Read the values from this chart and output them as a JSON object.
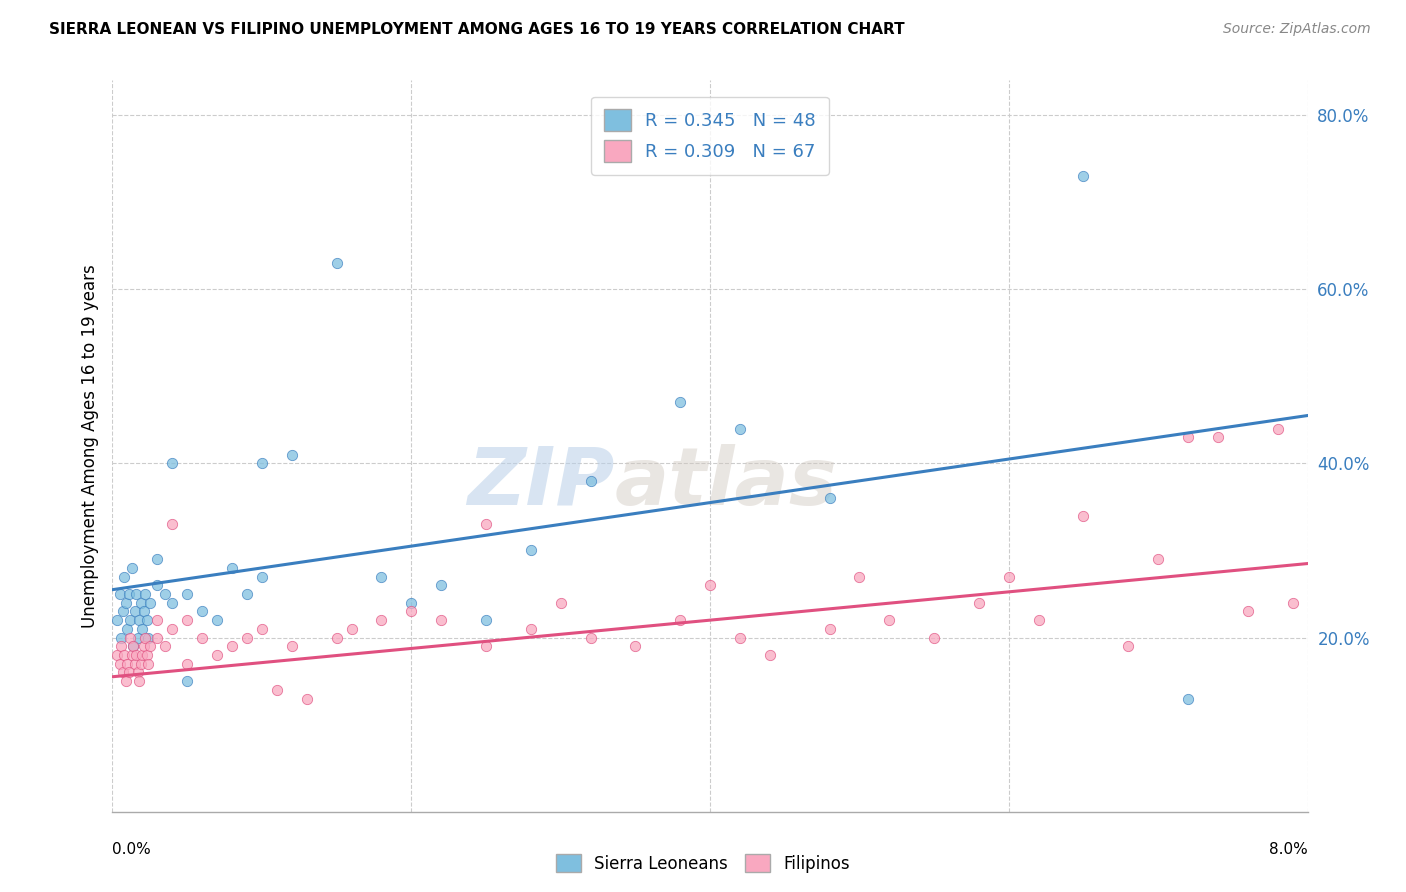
{
  "title": "SIERRA LEONEAN VS FILIPINO UNEMPLOYMENT AMONG AGES 16 TO 19 YEARS CORRELATION CHART",
  "source": "Source: ZipAtlas.com",
  "ylabel": "Unemployment Among Ages 16 to 19 years",
  "xlim": [
    0.0,
    0.08
  ],
  "ylim": [
    0.0,
    0.84
  ],
  "yticks": [
    0.2,
    0.4,
    0.6,
    0.8
  ],
  "ytick_labels": [
    "20.0%",
    "40.0%",
    "60.0%",
    "80.0%"
  ],
  "color_blue": "#7fbfdf",
  "color_pink": "#f9a8c0",
  "line_blue": "#3a7ebf",
  "line_pink": "#e05080",
  "watermark_zip": "ZIP",
  "watermark_atlas": "atlas",
  "sl_line_x0": 0.0,
  "sl_line_y0": 0.255,
  "sl_line_x1": 0.08,
  "sl_line_y1": 0.455,
  "fi_line_x0": 0.0,
  "fi_line_y0": 0.155,
  "fi_line_x1": 0.08,
  "fi_line_y1": 0.285,
  "sl_x": [
    0.0003,
    0.0005,
    0.0006,
    0.0007,
    0.0008,
    0.0009,
    0.001,
    0.0011,
    0.0012,
    0.0013,
    0.0014,
    0.0015,
    0.0016,
    0.0017,
    0.0018,
    0.0019,
    0.002,
    0.0021,
    0.0022,
    0.0023,
    0.0024,
    0.0025,
    0.003,
    0.003,
    0.0035,
    0.004,
    0.004,
    0.005,
    0.005,
    0.006,
    0.007,
    0.008,
    0.009,
    0.01,
    0.01,
    0.012,
    0.015,
    0.018,
    0.02,
    0.022,
    0.025,
    0.028,
    0.032,
    0.038,
    0.042,
    0.048,
    0.065,
    0.072
  ],
  "sl_y": [
    0.22,
    0.25,
    0.2,
    0.23,
    0.27,
    0.24,
    0.21,
    0.25,
    0.22,
    0.28,
    0.19,
    0.23,
    0.25,
    0.2,
    0.22,
    0.24,
    0.21,
    0.23,
    0.25,
    0.22,
    0.2,
    0.24,
    0.26,
    0.29,
    0.25,
    0.24,
    0.4,
    0.15,
    0.25,
    0.23,
    0.22,
    0.28,
    0.25,
    0.27,
    0.4,
    0.41,
    0.63,
    0.27,
    0.24,
    0.26,
    0.22,
    0.3,
    0.38,
    0.47,
    0.44,
    0.36,
    0.73,
    0.13
  ],
  "fi_x": [
    0.0003,
    0.0005,
    0.0006,
    0.0007,
    0.0008,
    0.0009,
    0.001,
    0.0011,
    0.0012,
    0.0013,
    0.0014,
    0.0015,
    0.0016,
    0.0017,
    0.0018,
    0.0019,
    0.002,
    0.0021,
    0.0022,
    0.0023,
    0.0024,
    0.0025,
    0.003,
    0.003,
    0.0035,
    0.004,
    0.004,
    0.005,
    0.005,
    0.006,
    0.007,
    0.008,
    0.009,
    0.01,
    0.011,
    0.012,
    0.013,
    0.015,
    0.016,
    0.018,
    0.02,
    0.022,
    0.025,
    0.025,
    0.028,
    0.03,
    0.032,
    0.035,
    0.038,
    0.04,
    0.042,
    0.044,
    0.048,
    0.05,
    0.052,
    0.055,
    0.058,
    0.06,
    0.062,
    0.065,
    0.068,
    0.07,
    0.072,
    0.074,
    0.076,
    0.078,
    0.079
  ],
  "fi_y": [
    0.18,
    0.17,
    0.19,
    0.16,
    0.18,
    0.15,
    0.17,
    0.16,
    0.2,
    0.18,
    0.19,
    0.17,
    0.18,
    0.16,
    0.15,
    0.17,
    0.18,
    0.19,
    0.2,
    0.18,
    0.17,
    0.19,
    0.2,
    0.22,
    0.19,
    0.21,
    0.33,
    0.17,
    0.22,
    0.2,
    0.18,
    0.19,
    0.2,
    0.21,
    0.14,
    0.19,
    0.13,
    0.2,
    0.21,
    0.22,
    0.23,
    0.22,
    0.19,
    0.33,
    0.21,
    0.24,
    0.2,
    0.19,
    0.22,
    0.26,
    0.2,
    0.18,
    0.21,
    0.27,
    0.22,
    0.2,
    0.24,
    0.27,
    0.22,
    0.34,
    0.19,
    0.29,
    0.43,
    0.43,
    0.23,
    0.44,
    0.24
  ]
}
